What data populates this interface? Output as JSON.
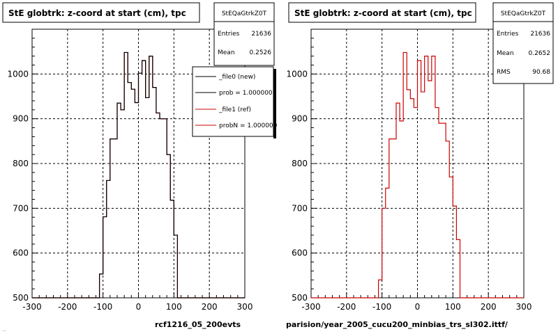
{
  "colors": {
    "new_line": "#000000",
    "ref_line": "#cc0000",
    "grid": "#000000",
    "background": "#ffffff"
  },
  "left_panel": {
    "title": "StE globtrk: z-coord at start (cm), tpc",
    "stats": {
      "name": "StEQaGtrkZ0T",
      "rows": [
        {
          "label": "Entries",
          "value": "21636"
        },
        {
          "label": "Mean",
          "value": "0.2526"
        }
      ]
    },
    "legend": [
      {
        "label": "_file0 (new)",
        "color": "#000000"
      },
      {
        "label": "prob = 1.000000",
        "color": "#000000"
      },
      {
        "label": "_file1 (ref)",
        "color": "#cc0000"
      },
      {
        "label": "probN = 1.000000",
        "color": "#cc0000"
      }
    ],
    "footer": "rcf1216_05_200evts",
    "footer_small": "..."
  },
  "right_panel": {
    "title": "StE globtrk: z-coord at start (cm), tpc",
    "stats": {
      "name": "StEQaGtrkZ0T",
      "rows": [
        {
          "label": "Entries",
          "value": "21636"
        },
        {
          "label": "Mean",
          "value": "0.2652"
        },
        {
          "label": "RMS",
          "value": "90.68"
        }
      ]
    },
    "footer": "parision/year_2005_cucu200_minbias_trs_sl302.ittf/"
  },
  "chart_data": [
    {
      "type": "histogram",
      "title": "StE globtrk: z-coord at start (cm), tpc",
      "xlim": [
        -300,
        300
      ],
      "ylim": [
        500,
        1100
      ],
      "xticks": [
        -300,
        -200,
        -100,
        0,
        100,
        200,
        300
      ],
      "yticks": [
        500,
        600,
        700,
        800,
        900,
        1000
      ],
      "grid": true,
      "bin_width": 10,
      "series": [
        {
          "name": "_file1 (ref)",
          "color": "#cc0000",
          "x": [
            -250,
            -240,
            -230,
            -220,
            -210,
            -200,
            -190,
            -180,
            -170,
            -160,
            -150,
            -140,
            -130,
            -120,
            -110,
            -100,
            -90,
            -80,
            -70,
            -60,
            -50,
            -40,
            -30,
            -20,
            -10,
            0,
            10,
            20,
            30,
            40,
            50,
            60,
            70,
            80,
            90,
            100,
            110,
            120
          ],
          "values": [
            500,
            500,
            500,
            500,
            500,
            500,
            500,
            500,
            500,
            500,
            500,
            500,
            500,
            500,
            553,
            681,
            762,
            855,
            855,
            935,
            920,
            1048,
            981,
            966,
            936,
            1002,
            1030,
            947,
            1040,
            970,
            913,
            900,
            900,
            820,
            718,
            640,
            500,
            500
          ]
        },
        {
          "name": "_file0 (new)",
          "color": "#000000",
          "x": [
            -250,
            -240,
            -230,
            -220,
            -210,
            -200,
            -190,
            -180,
            -170,
            -160,
            -150,
            -140,
            -130,
            -120,
            -110,
            -100,
            -90,
            -80,
            -70,
            -60,
            -50,
            -40,
            -30,
            -20,
            -10,
            0,
            10,
            20,
            30,
            40,
            50,
            60,
            70,
            80,
            90,
            100,
            110,
            120
          ],
          "values": [
            500,
            500,
            500,
            500,
            500,
            500,
            500,
            500,
            500,
            500,
            500,
            500,
            500,
            500,
            553,
            681,
            762,
            855,
            855,
            935,
            920,
            1048,
            981,
            966,
            936,
            1002,
            1030,
            947,
            1040,
            970,
            913,
            900,
            900,
            820,
            718,
            640,
            500,
            500
          ]
        }
      ]
    },
    {
      "type": "histogram",
      "title": "StE globtrk: z-coord at start (cm), tpc",
      "xlim": [
        -300,
        300
      ],
      "ylim": [
        500,
        1100
      ],
      "xticks": [
        -300,
        -200,
        -100,
        0,
        100,
        200,
        300
      ],
      "yticks": [
        500,
        600,
        700,
        800,
        900,
        1000
      ],
      "grid": true,
      "bin_width": 10,
      "series": [
        {
          "name": "",
          "color": "#cc0000",
          "x": [
            -250,
            -240,
            -230,
            -220,
            -210,
            -200,
            -190,
            -180,
            -170,
            -160,
            -150,
            -140,
            -130,
            -120,
            -110,
            -100,
            -90,
            -80,
            -70,
            -60,
            -50,
            -40,
            -30,
            -20,
            -10,
            0,
            10,
            20,
            30,
            40,
            50,
            60,
            70,
            80,
            90,
            100,
            110,
            120
          ],
          "values": [
            500,
            500,
            500,
            500,
            500,
            500,
            500,
            500,
            500,
            500,
            500,
            500,
            500,
            500,
            540,
            700,
            745,
            855,
            855,
            935,
            895,
            1048,
            965,
            945,
            925,
            1030,
            960,
            1040,
            985,
            1040,
            925,
            890,
            890,
            850,
            770,
            705,
            630,
            500
          ]
        }
      ]
    }
  ]
}
